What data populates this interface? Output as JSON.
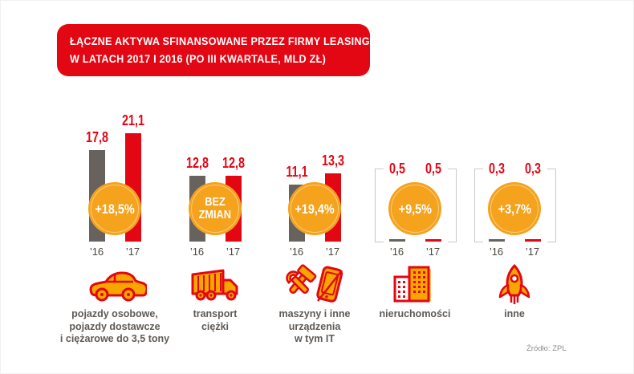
{
  "title": {
    "line1": "ŁĄCZNE AKTYWA SFINANSOWANE PRZEZ FIRMY LEASINGOWE",
    "line2": "W LATACH 2017 I 2016 (PO III KWARTALE, MLD ZŁ)"
  },
  "source": "Źródło: ZPL",
  "colors": {
    "brand_red": "#e30613",
    "bar_2016_gray": "#67625e",
    "badge_orange": "#f5a21d",
    "icon_orange": "#f7a600",
    "label_gray": "#5f5a55",
    "bracket_gray": "#c9c9c9"
  },
  "chart_data": {
    "type": "bar",
    "title": "Łączne aktywa sfinansowane przez firmy leasingowe w latach 2017 i 2016 (po III kwartale, mld zł)",
    "unit": "mld zł",
    "categories": [
      "pojazdy osobowe, pojazdy dostawcze i ciężarowe do 3,5 tony",
      "transport ciężki",
      "maszyny i inne urządzenia w tym IT",
      "nieruchomości",
      "inne"
    ],
    "series": [
      {
        "name": "’16",
        "values": [
          17.8,
          12.8,
          11.1,
          0.5,
          0.3
        ]
      },
      {
        "name": "’17",
        "values": [
          21.1,
          12.8,
          13.3,
          0.5,
          0.3
        ]
      }
    ],
    "changes": [
      "+18,5%",
      "bez zmian",
      "+19,4%",
      "+9,5%",
      "+3,7%"
    ],
    "ylim": [
      0,
      22
    ],
    "grid": false,
    "legend_position": "none"
  },
  "groups": [
    {
      "value16": "17,8",
      "value17": "21,1",
      "year16": "’16",
      "year17": "’17",
      "badge_line1": "+18,5%",
      "badge_line2": "",
      "bracket": false,
      "label_lines": [
        "pojazdy osobowe,",
        "pojazdy dostawcze",
        "i ciężarowe do 3,5 tony"
      ],
      "icon": "car-icon"
    },
    {
      "value16": "12,8",
      "value17": "12,8",
      "year16": "’16",
      "year17": "’17",
      "badge_line1": "BEZ",
      "badge_line2": "ZMIAN",
      "bracket": false,
      "label_lines": [
        "transport",
        "ciężki"
      ],
      "icon": "truck-icon"
    },
    {
      "value16": "11,1",
      "value17": "13,3",
      "year16": "’16",
      "year17": "’17",
      "badge_line1": "+19,4%",
      "badge_line2": "",
      "bracket": false,
      "label_lines": [
        "maszyny i inne",
        "urządzenia",
        "w tym IT"
      ],
      "icon": "tools-phone-icon"
    },
    {
      "value16": "0,5",
      "value17": "0,5",
      "year16": "’16",
      "year17": "’17",
      "badge_line1": "+9,5%",
      "badge_line2": "",
      "bracket": true,
      "label_lines": [
        "nieruchomości"
      ],
      "icon": "building-icon"
    },
    {
      "value16": "0,3",
      "value17": "0,3",
      "year16": "’16",
      "year17": "’17",
      "badge_line1": "+3,7%",
      "badge_line2": "",
      "bracket": true,
      "label_lines": [
        "inne"
      ],
      "icon": "rocket-icon"
    }
  ]
}
